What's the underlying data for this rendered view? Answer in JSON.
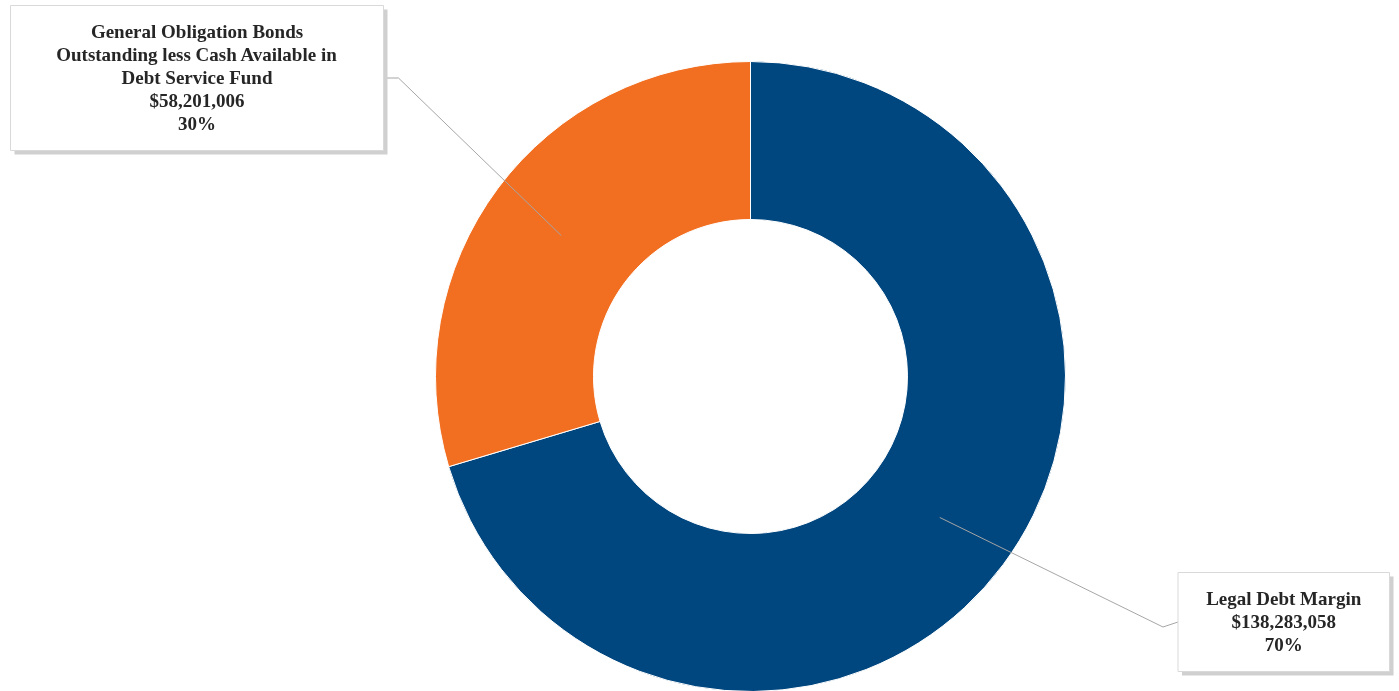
{
  "chart_data": {
    "type": "donut",
    "categories": [
      "Legal Debt Margin",
      "General Obligation Bonds Outstanding less Cash Available in Debt Service Fund"
    ],
    "values": [
      138283058,
      58201006
    ],
    "colors": [
      "#00467f",
      "#f26f21"
    ],
    "value_labels": [
      "$138,283,058\n70%",
      "$58,201,006\n30%"
    ],
    "legend": false
  }
}
